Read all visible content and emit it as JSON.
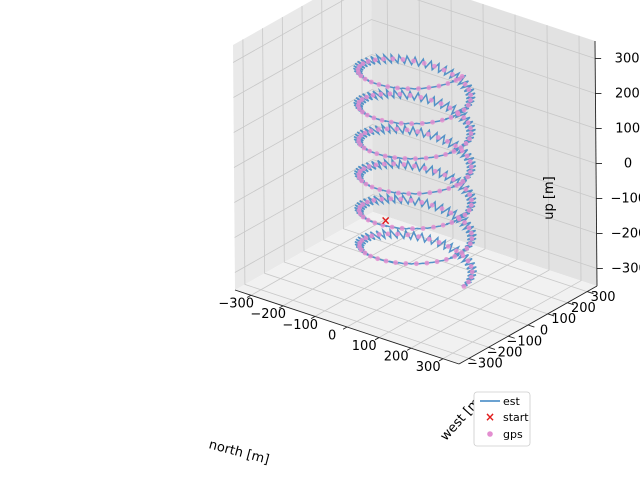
{
  "chart_data": {
    "type": "line3d",
    "xlabel": "north [m]",
    "ylabel": "west [m]",
    "zlabel": "up [m]",
    "xlim": [
      -350,
      350
    ],
    "ylim": [
      -350,
      350
    ],
    "zlim": [
      -350,
      350
    ],
    "x_ticks": [
      -300,
      -200,
      -100,
      0,
      100,
      200,
      300
    ],
    "y_ticks": [
      -300,
      -200,
      -100,
      0,
      100,
      200,
      300
    ],
    "z_ticks": [
      -300,
      -200,
      -100,
      0,
      100,
      200,
      300
    ],
    "x_tick_labels": [
      "−300",
      "−200",
      "−100",
      "0",
      "100",
      "200",
      "300"
    ],
    "y_tick_labels": [
      "−300",
      "−200",
      "−100",
      "0",
      "100",
      "200",
      "300"
    ],
    "z_tick_labels": [
      "−300",
      "−200",
      "−100",
      "0",
      "100",
      "200",
      "300"
    ],
    "grid": true,
    "legend_position": "lower-right",
    "series": [
      {
        "name": "est",
        "kind": "line",
        "color": "#3a84c2",
        "note": "helix of radius ~150 m around (0,0), rising from about -300 m to 300 m with jittered estimate"
      },
      {
        "name": "start",
        "kind": "marker",
        "marker": "x",
        "color": "#e11c1c",
        "point": [
          0,
          -150,
          -110
        ]
      },
      {
        "name": "gps",
        "kind": "scatter",
        "color": "#e38ed0",
        "note": "points along the same helix"
      }
    ],
    "helix": {
      "center": [
        0,
        0
      ],
      "radius": 150,
      "z_start": -300,
      "z_end": 300,
      "turns": 6
    }
  }
}
